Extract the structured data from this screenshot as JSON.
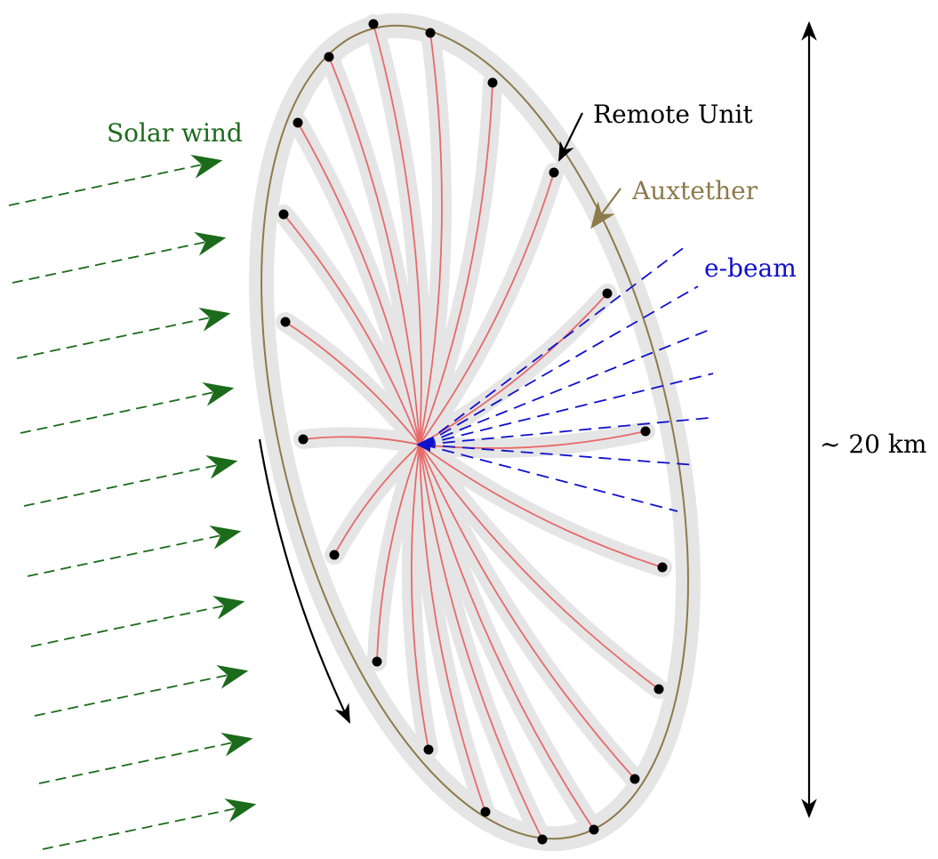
{
  "labels": {
    "solar_wind": "Solar wind",
    "remote_unit": "Remote Unit",
    "auxtether": "Auxtether",
    "e_beam": "e-beam",
    "size": "~ 20 km"
  },
  "colors": {
    "solar_wind": "#1b6b1b",
    "auxtether": "#8c7a4a",
    "e_beam": "#1010cc",
    "tether": "#e86a6a",
    "sail_band": "#e5e5e5",
    "black": "#000000"
  }
}
